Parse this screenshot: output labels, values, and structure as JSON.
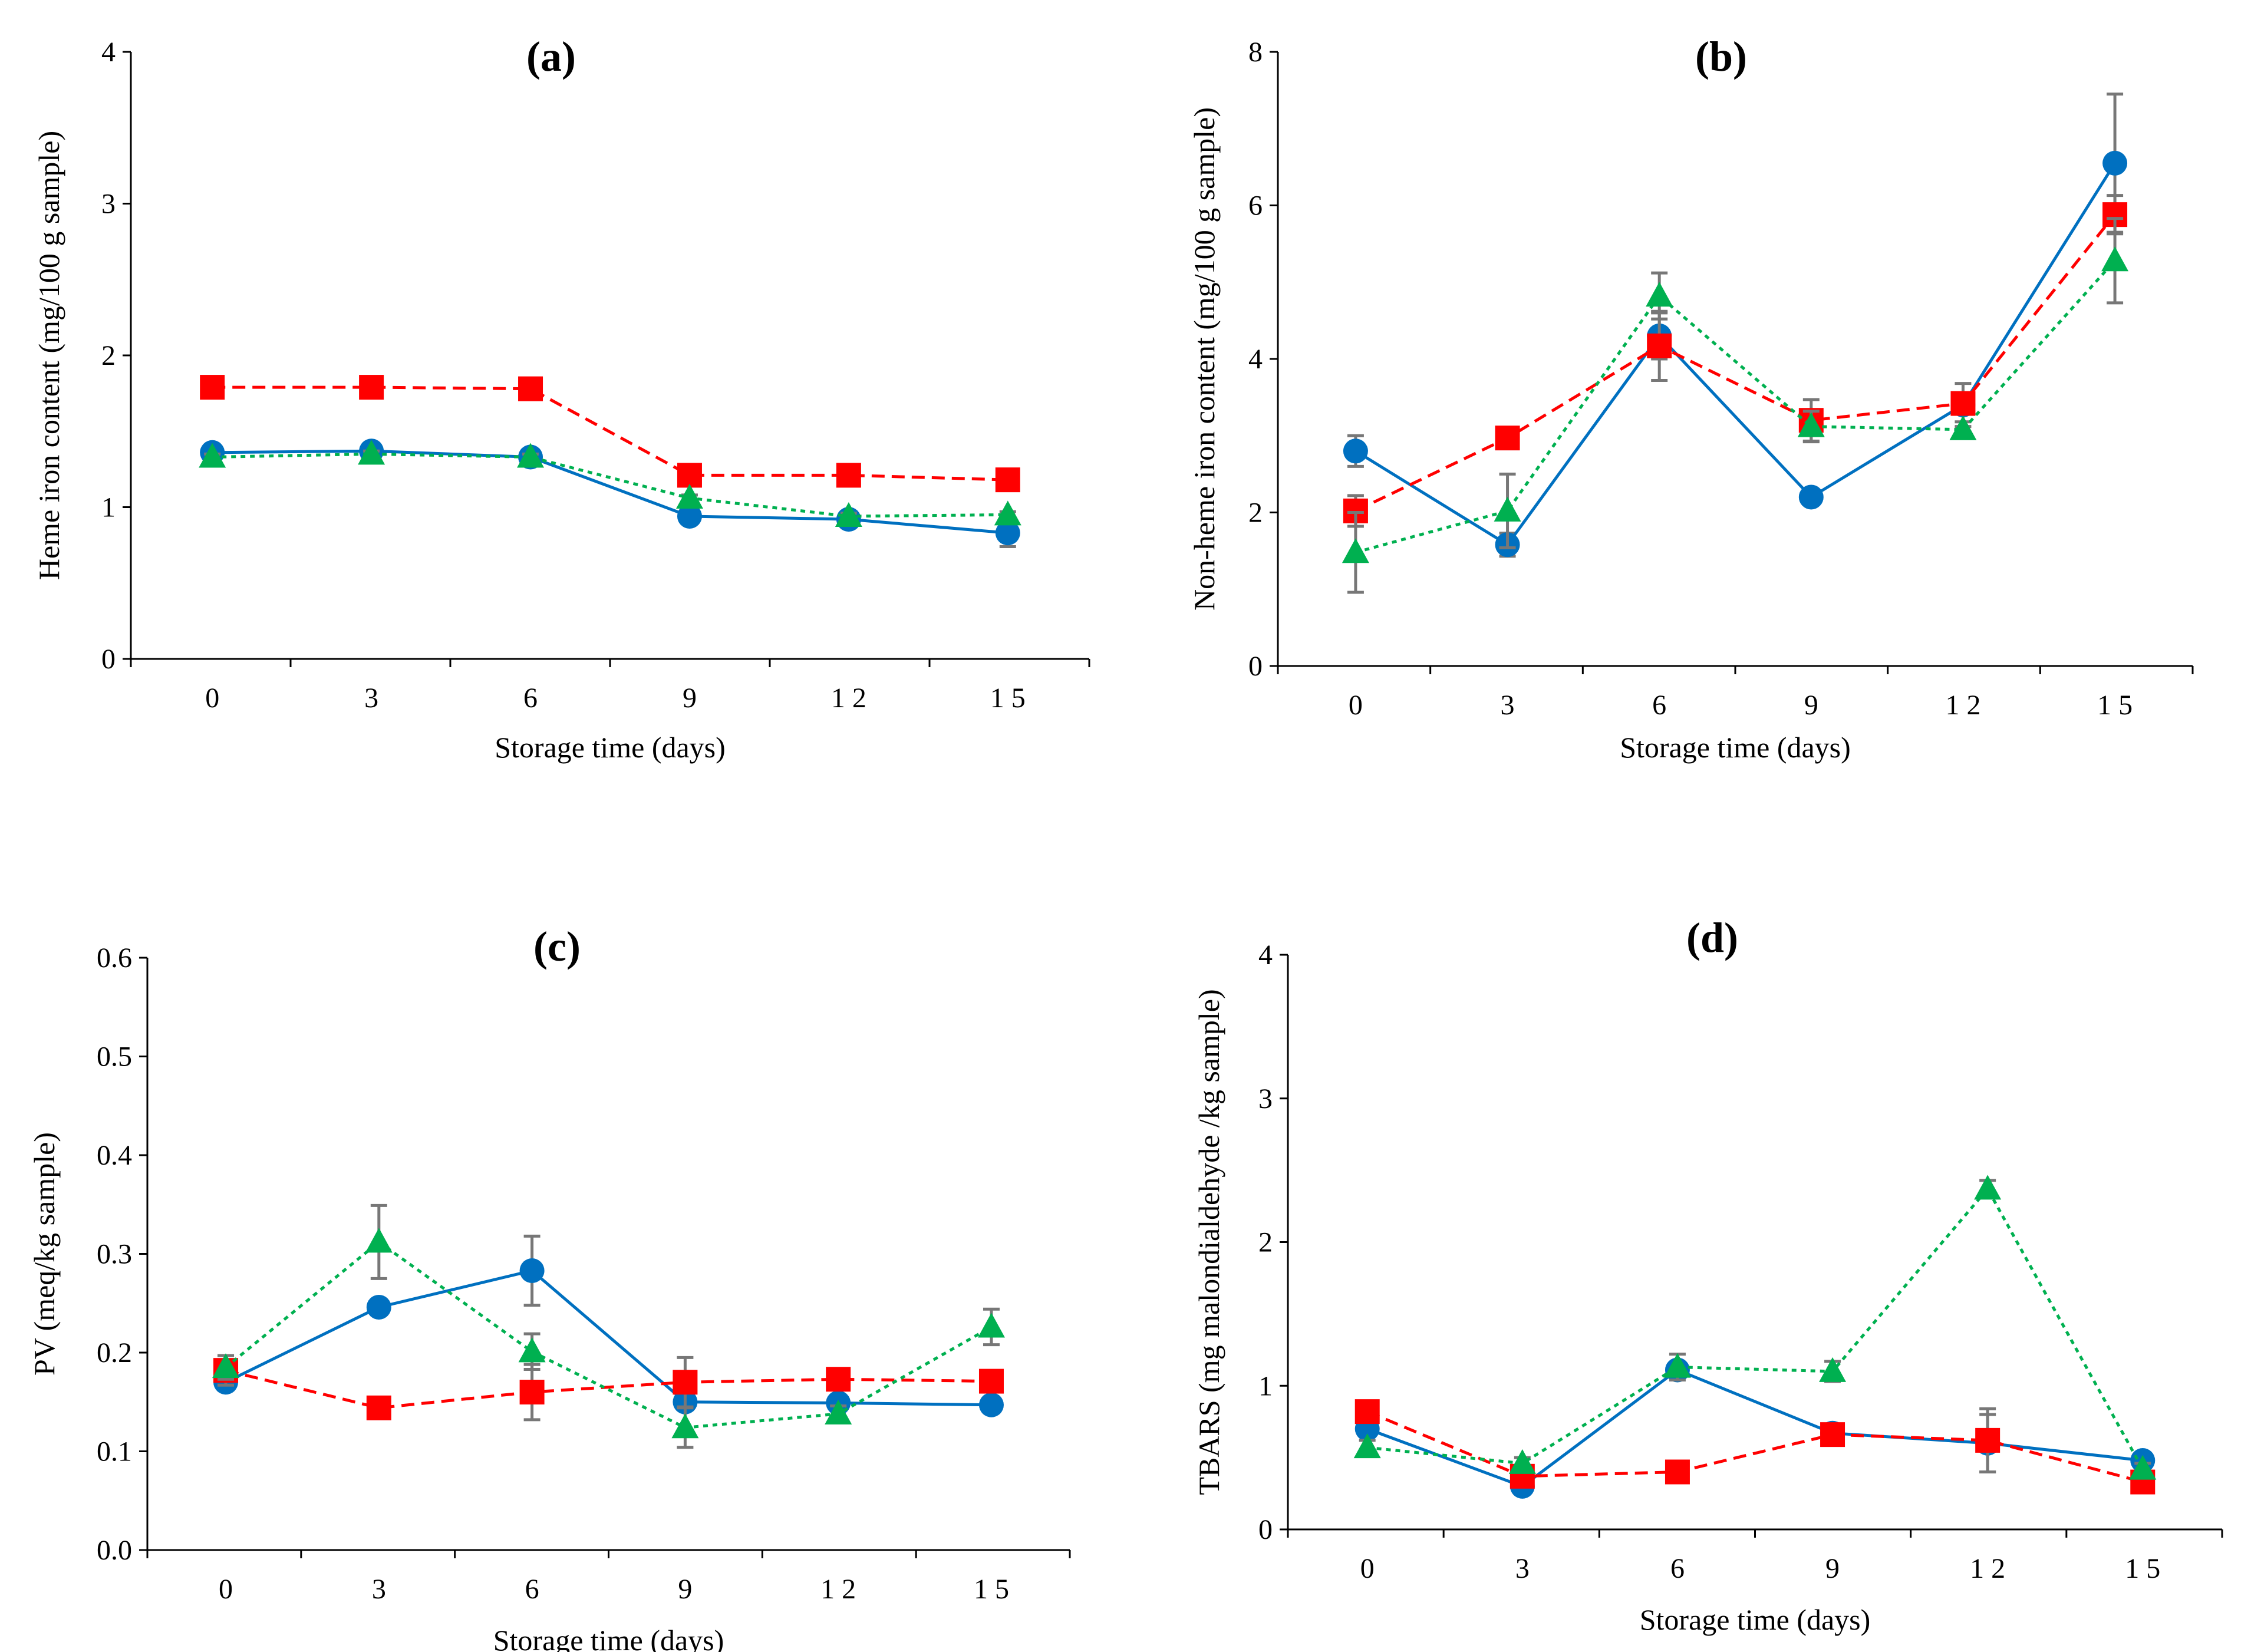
{
  "colors": {
    "s1": "#0070C0",
    "s2": "#FF0000",
    "s3": "#00B050",
    "error": "#777777"
  },
  "chart_data": [
    {
      "type": "line",
      "title": "(a)",
      "xlabel": "Storage time (days)",
      "ylabel": "Heme iron content (mg/100 g sample)",
      "x": [
        0,
        3,
        6,
        9,
        12,
        15
      ],
      "xticks": [
        "0",
        "3",
        "6",
        "9",
        "1 2",
        "1 5"
      ],
      "ylim": [
        0,
        4
      ],
      "yticks": [
        0,
        1,
        2,
        3,
        4
      ],
      "ytick_labels": [
        "0",
        "1",
        "2",
        "3",
        "4"
      ],
      "series": [
        {
          "name": "Series 1 (circle, solid)",
          "values": [
            1.36,
            1.37,
            1.33,
            0.94,
            0.92,
            0.83
          ],
          "errors": [
            0.03,
            0.03,
            0.03,
            0.03,
            0.03,
            0.09
          ]
        },
        {
          "name": "Series 2 (square, dashed)",
          "values": [
            1.79,
            1.79,
            1.78,
            1.21,
            1.21,
            1.18
          ],
          "errors": [
            0.02,
            0.02,
            0.02,
            0.02,
            0.02,
            0.02
          ]
        },
        {
          "name": "Series 3 (triangle, dotted)",
          "values": [
            1.33,
            1.35,
            1.33,
            1.06,
            0.94,
            0.95
          ],
          "errors": [
            0.02,
            0.02,
            0.02,
            0.02,
            0.02,
            0.02
          ]
        }
      ]
    },
    {
      "type": "line",
      "title": "(b)",
      "xlabel": "Storage time (days)",
      "ylabel": "Non-heme iron content (mg/100 g sample)",
      "x": [
        0,
        3,
        6,
        9,
        12,
        15
      ],
      "xticks": [
        "0",
        "3",
        "6",
        "9",
        "1 2",
        "1 5"
      ],
      "ylim": [
        0,
        8
      ],
      "yticks": [
        0,
        2,
        4,
        6,
        8
      ],
      "ytick_labels": [
        "0",
        "2",
        "4",
        "6",
        "8"
      ],
      "series": [
        {
          "name": "Series 1 (circle, solid)",
          "values": [
            2.8,
            1.58,
            4.3,
            2.2,
            3.4,
            6.55
          ],
          "errors": [
            0.2,
            0.15,
            0.3,
            0.05,
            0.28,
            0.9
          ]
        },
        {
          "name": "Series 2 (square, dashed)",
          "values": [
            2.02,
            2.97,
            4.17,
            3.2,
            3.42,
            5.88
          ],
          "errors": [
            0.2,
            0.05,
            0.45,
            0.27,
            0.1,
            0.25
          ]
        },
        {
          "name": "Series 3 (triangle, dotted)",
          "values": [
            1.48,
            2.02,
            4.82,
            3.12,
            3.08,
            5.28
          ],
          "errors": [
            0.52,
            0.48,
            0.3,
            0.2,
            0.1,
            0.55
          ]
        }
      ]
    },
    {
      "type": "line",
      "title": "(c)",
      "xlabel": "Storage time (days)",
      "ylabel": "PV (meq/kg sample)",
      "x": [
        0,
        3,
        6,
        9,
        12,
        15
      ],
      "xticks": [
        "0",
        "3",
        "6",
        "9",
        "1 2",
        "1 5"
      ],
      "ylim": [
        0,
        0.6
      ],
      "yticks": [
        0,
        0.1,
        0.2,
        0.3,
        0.4,
        0.5,
        0.6
      ],
      "ytick_labels": [
        "0.0",
        "0.1",
        "0.2",
        "0.3",
        "0.4",
        "0.5",
        "0.6"
      ],
      "series": [
        {
          "name": "Series 1 (circle, solid)",
          "values": [
            0.17,
            0.246,
            0.283,
            0.15,
            0.149,
            0.147
          ],
          "errors": [
            0.008,
            0.008,
            0.035,
            0.008,
            0.008,
            0.008
          ]
        },
        {
          "name": "Series 2 (square, dashed)",
          "values": [
            0.182,
            0.144,
            0.16,
            0.17,
            0.173,
            0.171
          ],
          "errors": [
            0.015,
            0.008,
            0.028,
            0.025,
            0.008,
            0.008
          ]
        },
        {
          "name": "Series 3 (triangle, dotted)",
          "values": [
            0.185,
            0.312,
            0.201,
            0.124,
            0.138,
            0.226
          ],
          "errors": [
            0.012,
            0.037,
            0.018,
            0.02,
            0.008,
            0.018
          ]
        }
      ]
    },
    {
      "type": "line",
      "title": "(d)",
      "xlabel": "Storage time (days)",
      "ylabel": "TBARS (mg malondialdehyde /kg sample)",
      "x": [
        0,
        3,
        6,
        9,
        12,
        15
      ],
      "xticks": [
        "0",
        "3",
        "6",
        "9",
        "1 2",
        "1 5"
      ],
      "ylim": [
        0,
        4
      ],
      "yticks": [
        0,
        1,
        2,
        3,
        4
      ],
      "ytick_labels": [
        "0",
        "1",
        "2",
        "3",
        "4"
      ],
      "series": [
        {
          "name": "Series 1 (circle, solid)",
          "values": [
            0.7,
            0.3,
            1.11,
            0.67,
            0.6,
            0.48
          ],
          "errors": [
            0.05,
            0.04,
            0.05,
            0.04,
            0.2,
            0.04
          ]
        },
        {
          "name": "Series 2 (square, dashed)",
          "values": [
            0.82,
            0.37,
            0.4,
            0.66,
            0.62,
            0.33
          ],
          "errors": [
            0.04,
            0.04,
            0.04,
            0.04,
            0.22,
            0.04
          ]
        },
        {
          "name": "Series 3 (triangle, dotted)",
          "values": [
            0.57,
            0.46,
            1.13,
            1.1,
            2.37,
            0.42
          ],
          "errors": [
            0.05,
            0.04,
            0.09,
            0.07,
            0.06,
            0.04
          ]
        }
      ]
    }
  ]
}
